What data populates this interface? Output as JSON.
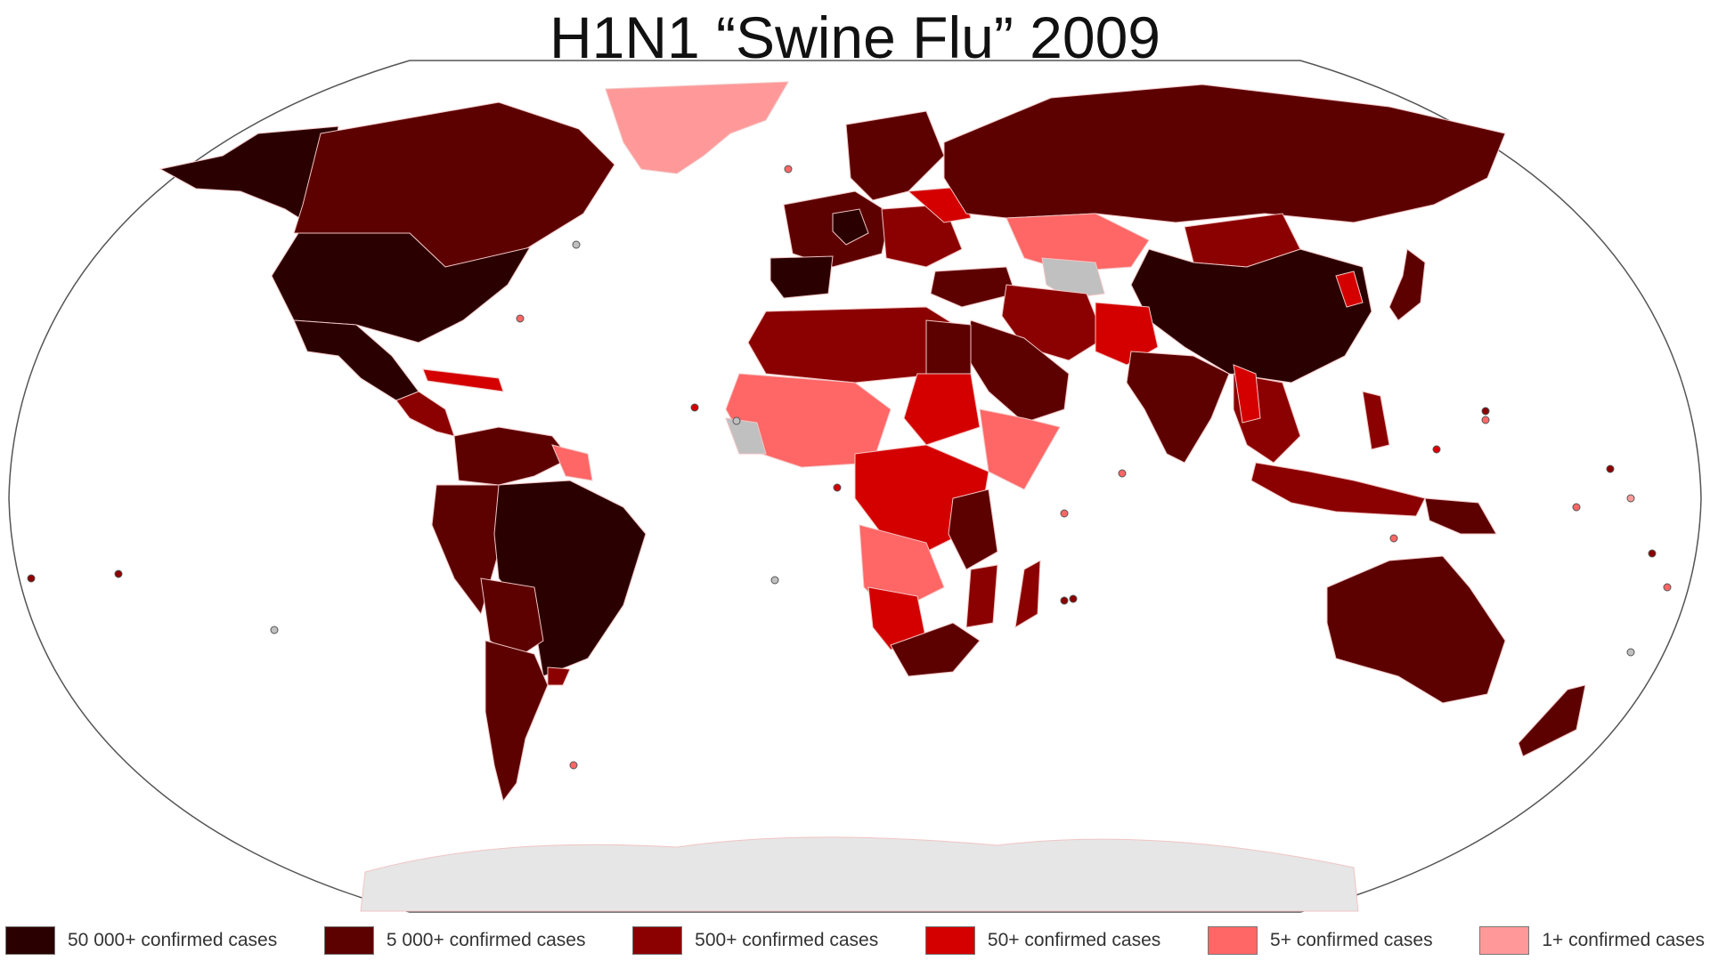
{
  "title": "H1N1 “Swine Flu” 2009",
  "colors": {
    "ocean": "#ffffff",
    "outline": "#555555",
    "border": "#f2c4c4",
    "no_data": "#c0c0c0",
    "antarctica": "#e6e6e6"
  },
  "legend": [
    {
      "label": "50 000+ confirmed cases",
      "color": "#2b0000"
    },
    {
      "label": "5 000+ confirmed cases",
      "color": "#5c0000"
    },
    {
      "label": "500+ confirmed cases",
      "color": "#8b0000"
    },
    {
      "label": "50+ confirmed cases",
      "color": "#d40000"
    },
    {
      "label": "5+ confirmed cases",
      "color": "#ff6666"
    },
    {
      "label": "1+ confirmed cases",
      "color": "#ff9999"
    }
  ]
}
